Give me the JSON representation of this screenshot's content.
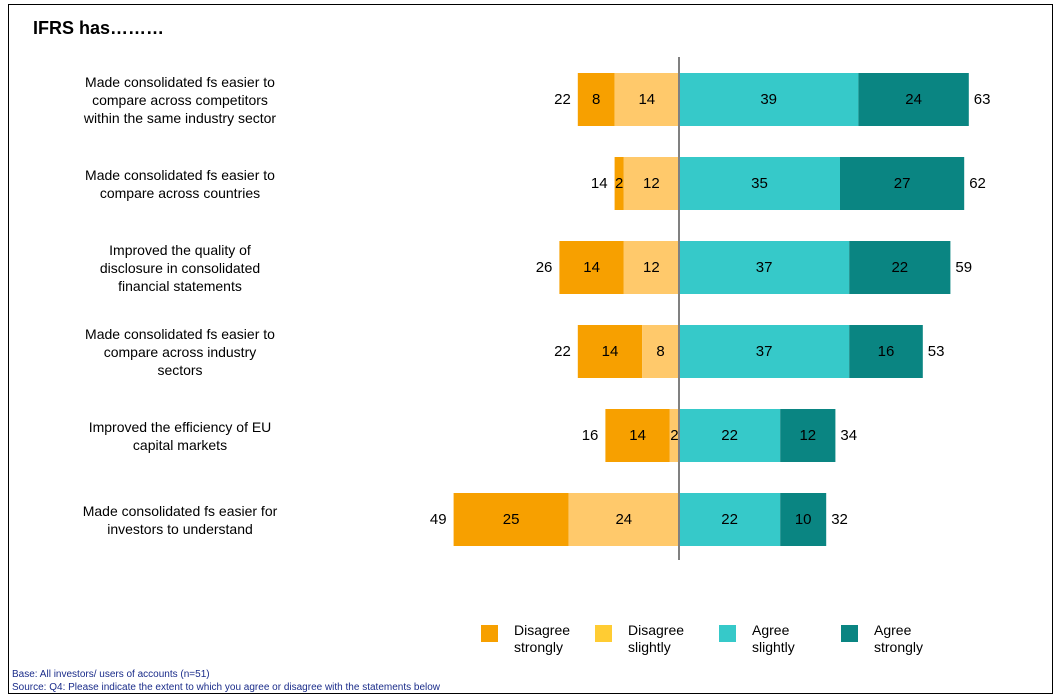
{
  "title": "IFRS has………",
  "colors": {
    "disagree_strongly": "#F7A000",
    "disagree_slightly": "#FFC96B",
    "agree_slightly": "#36C9C9",
    "agree_strongly": "#0A8582",
    "axis": "#808080"
  },
  "legend": [
    {
      "label_line1": "Disagree",
      "label_line2": "strongly",
      "color": "#F7A000"
    },
    {
      "label_line1": "Disagree",
      "label_line2": "slightly",
      "color": "#FFCC33"
    },
    {
      "label_line1": "Agree",
      "label_line2": "slightly",
      "color": "#36C9C9"
    },
    {
      "label_line1": "Agree",
      "label_line2": "strongly",
      "color": "#0A8582"
    }
  ],
  "footnote": {
    "base": "Base: All investors/ users of accounts (n=51)",
    "source": "Source: Q4: Please indicate the extent to which you agree or disagree with the statements below"
  },
  "chart_data": {
    "type": "bar",
    "orientation": "horizontal-diverging",
    "categories": [
      [
        "Made consolidated fs easier to",
        "compare across competitors",
        "within the same industry sector"
      ],
      [
        "Made consolidated fs easier to",
        "compare across countries"
      ],
      [
        "Improved the quality of",
        "disclosure in consolidated",
        "financial statements"
      ],
      [
        "Made consolidated fs easier to",
        "compare across industry",
        "sectors"
      ],
      [
        "Improved the efficiency of EU",
        "capital markets"
      ],
      [
        "Made consolidated fs easier for",
        "investors to understand"
      ]
    ],
    "series": [
      {
        "name": "Disagree strongly",
        "values": [
          8,
          2,
          14,
          14,
          14,
          25
        ]
      },
      {
        "name": "Disagree slightly",
        "values": [
          14,
          12,
          12,
          8,
          2,
          24
        ]
      },
      {
        "name": "Agree slightly",
        "values": [
          39,
          35,
          37,
          37,
          22,
          22
        ]
      },
      {
        "name": "Agree strongly",
        "values": [
          24,
          27,
          22,
          16,
          12,
          10
        ]
      }
    ],
    "disagree_totals": [
      22,
      14,
      26,
      22,
      16,
      49
    ],
    "agree_totals": [
      63,
      62,
      59,
      53,
      34,
      32
    ]
  }
}
